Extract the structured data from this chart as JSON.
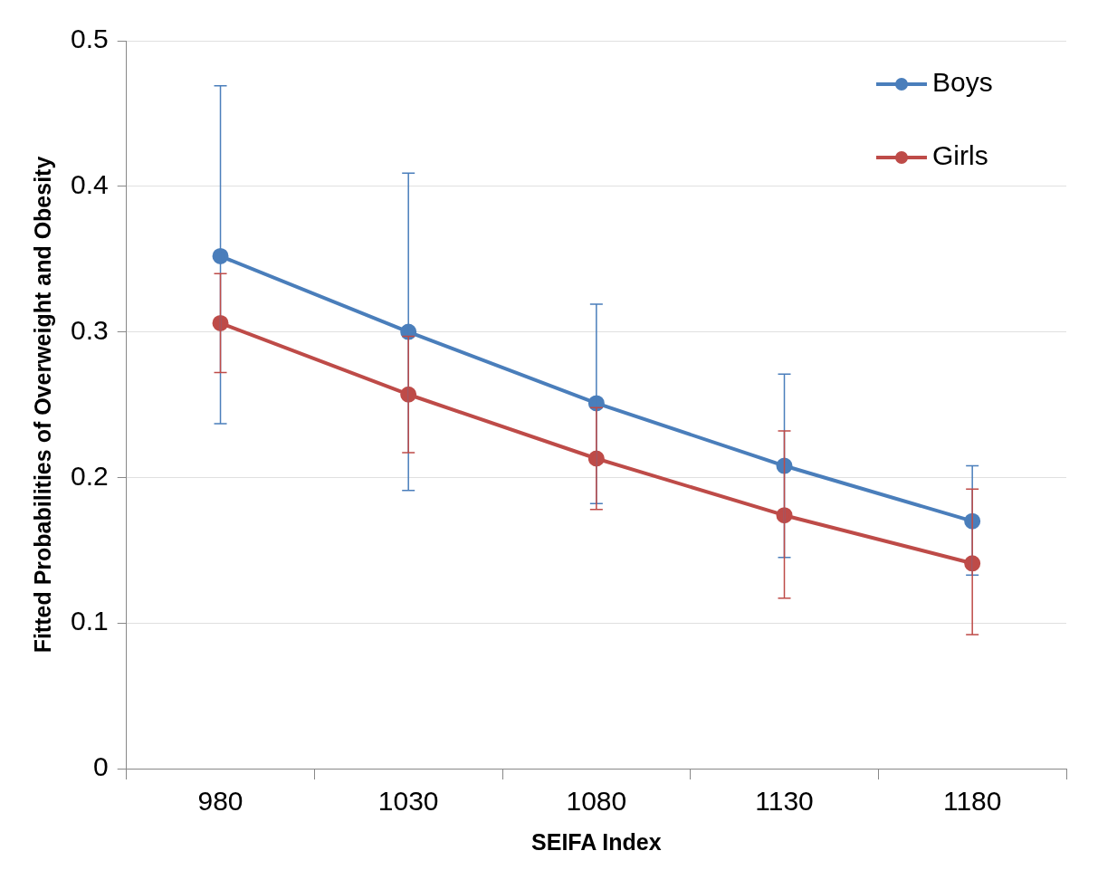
{
  "chart_data": {
    "type": "line",
    "xlabel": "SEIFA Index",
    "ylabel": "Fitted Probabilities of Overweight and Obesity",
    "categories": [
      "980",
      "1030",
      "1080",
      "1130",
      "1180"
    ],
    "series": [
      {
        "name": "Boys",
        "color": "#4a7ebb",
        "values": [
          0.352,
          0.3,
          0.251,
          0.208,
          0.17
        ],
        "errors": [
          [
            0.237,
            0.469
          ],
          [
            0.191,
            0.409
          ],
          [
            0.182,
            0.319
          ],
          [
            0.145,
            0.271
          ],
          [
            0.133,
            0.208
          ]
        ]
      },
      {
        "name": "Girls",
        "color": "#be4b48",
        "values": [
          0.306,
          0.257,
          0.213,
          0.174,
          0.141
        ],
        "errors": [
          [
            0.272,
            0.34
          ],
          [
            0.217,
            0.297
          ],
          [
            0.178,
            0.248
          ],
          [
            0.117,
            0.232
          ],
          [
            0.092,
            0.192
          ]
        ]
      }
    ],
    "ylim": [
      0,
      0.5
    ],
    "yticks": [
      0,
      0.1,
      0.2,
      0.3,
      0.4,
      0.5
    ],
    "grid": "y",
    "legend": "top right",
    "marker": "circle",
    "line_style": "solid"
  }
}
